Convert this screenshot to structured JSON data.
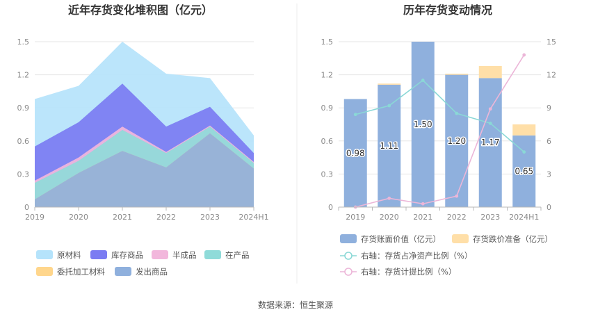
{
  "source": "数据来源：恒生聚源",
  "chart_data": [
    {
      "type": "area",
      "title": "近年存货变化堆积图（亿元）",
      "stacked": true,
      "x": [
        "2019",
        "2020",
        "2021",
        "2022",
        "2023",
        "2024H1"
      ],
      "ylim": [
        0,
        1.5
      ],
      "yticks": [
        "0",
        "0.3",
        "0.6",
        "0.9",
        "1.2",
        "1.5"
      ],
      "grid": true,
      "legend_position": "bottom",
      "series": [
        {
          "name": "发出商品",
          "color": "#8fb0dd",
          "values": [
            0.07,
            0.31,
            0.51,
            0.36,
            0.67,
            0.35
          ]
        },
        {
          "name": "委托加工材料",
          "color": "#ffd68c",
          "values": [
            0.0,
            0.0,
            0.0,
            0.0,
            0.0,
            0.0
          ]
        },
        {
          "name": "在产品",
          "color": "#8fdbd9",
          "values": [
            0.15,
            0.11,
            0.19,
            0.13,
            0.06,
            0.05
          ]
        },
        {
          "name": "半成品",
          "color": "#f2b7dc",
          "values": [
            0.02,
            0.03,
            0.03,
            0.01,
            0.01,
            0.01
          ]
        },
        {
          "name": "库存商品",
          "color": "#7b7cf2",
          "values": [
            0.31,
            0.32,
            0.39,
            0.23,
            0.17,
            0.08
          ]
        },
        {
          "name": "原材料",
          "color": "#b5e3fb",
          "values": [
            0.43,
            0.33,
            0.38,
            0.48,
            0.26,
            0.16
          ]
        }
      ],
      "legend_order": [
        "原材料",
        "库存商品",
        "半成品",
        "在产品",
        "委托加工材料",
        "发出商品"
      ]
    },
    {
      "type": "bar",
      "title": "历年存货变动情况",
      "categories": [
        "2019",
        "2020",
        "2021",
        "2022",
        "2023",
        "2024H1"
      ],
      "ylim": [
        0,
        1.5
      ],
      "yticks": [
        "0",
        "0.3",
        "0.6",
        "0.9",
        "1.2",
        "1.5"
      ],
      "y2lim": [
        0,
        15
      ],
      "y2ticks": [
        "0",
        "3",
        "6",
        "9",
        "12",
        "15"
      ],
      "grid": true,
      "legend_position": "bottom",
      "series": [
        {
          "name": "存货账面价值（亿元）",
          "type": "bar",
          "axis": "left",
          "color": "#8fb0dd",
          "values": [
            0.98,
            1.11,
            1.5,
            1.2,
            1.17,
            0.65
          ],
          "labels": [
            "0.98",
            "1.11",
            "1.50",
            "1.20",
            "1.17",
            "0.65"
          ]
        },
        {
          "name": "存货跌价准备（亿元）",
          "type": "bar",
          "axis": "left",
          "color": "#ffdfa8",
          "values": [
            0.0,
            0.01,
            0.0,
            0.01,
            0.11,
            0.1
          ]
        },
        {
          "name": "右轴：存货占净资产比例（%）",
          "type": "line",
          "axis": "right",
          "color": "#8ad8d6",
          "values": [
            8.4,
            9.2,
            11.5,
            8.5,
            7.6,
            5.0
          ]
        },
        {
          "name": "右轴：存货计提比例（%）",
          "type": "line",
          "axis": "right",
          "color": "#ecb6d8",
          "values": [
            0.0,
            0.8,
            0.3,
            1.0,
            8.9,
            13.8
          ]
        }
      ]
    }
  ]
}
